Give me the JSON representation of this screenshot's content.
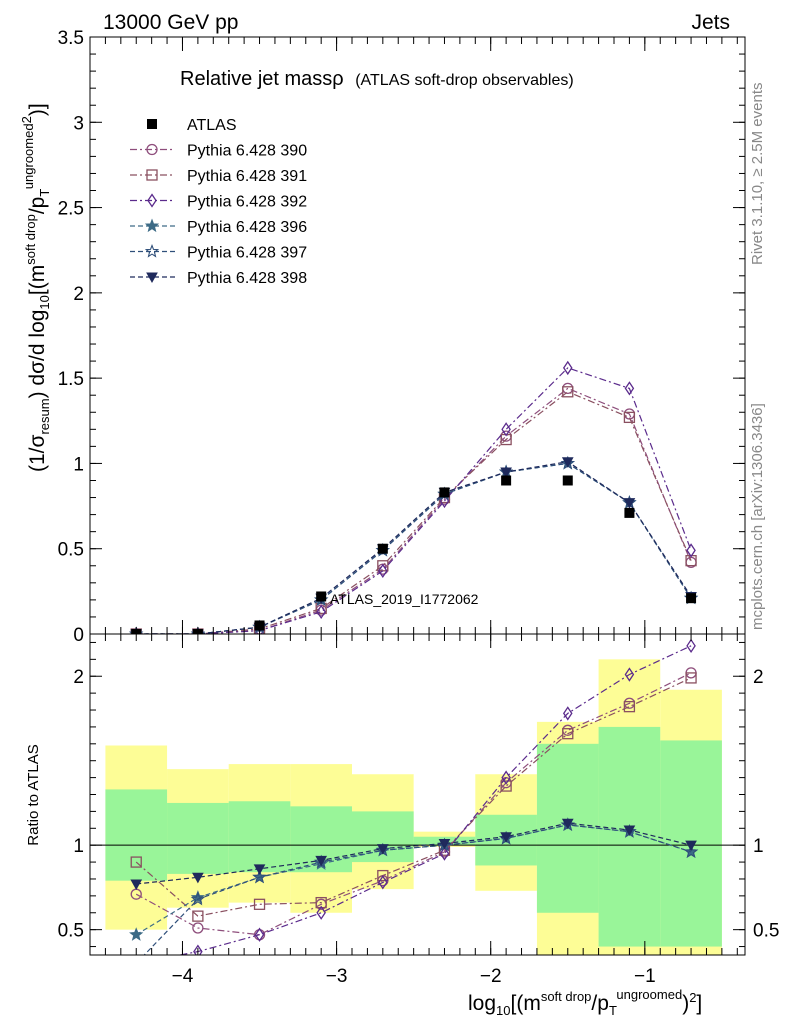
{
  "header": {
    "left": "13000 GeV pp",
    "right": "Jets"
  },
  "side": {
    "rivet": "Rivet 3.1.10, ≥ 2.5M events",
    "mcplots": "mcplots.cern.ch [arXiv:1306.3436]"
  },
  "watermark": "ATLAS_2019_I1772062",
  "chart_data": {
    "type": "line",
    "title": "Relative jet massρ",
    "subtitle": "(ATLAS soft-drop observables)",
    "x_label": {
      "base": "log",
      "sub": "10",
      "open": "[(m",
      "sup1": "soft drop",
      "mid": "/p",
      "sub2": "T",
      "sup2": "ungroomed",
      "sup3": "2",
      "close": ")",
      "close2": "]"
    },
    "y_label_main": {
      "pre": "(1/σ",
      "sub": "resum",
      "mid": ") dσ/d log",
      "sub2": "10",
      "open": "[(m",
      "sup1": "soft drop",
      "mid2": "/p",
      "sub3": "T",
      "sup2": "ungroomed",
      "sup3": "2",
      "close": ")]"
    },
    "y_label_ratio": "Ratio to ATLAS",
    "xlim": [
      -4.6,
      -0.35
    ],
    "ylim_main": [
      0,
      3.5
    ],
    "ylim_ratio": [
      0.35,
      2.25
    ],
    "log_y": false,
    "grid": false,
    "legend_position": "top-left",
    "x_ticks": [
      -4,
      -3,
      -2,
      -1
    ],
    "x_tick_labels": [
      "−4",
      "−3",
      "−2",
      "−1"
    ],
    "y_ticks_main": [
      0,
      0.5,
      1,
      1.5,
      2,
      2.5,
      3,
      3.5
    ],
    "y_tick_labels_main": [
      "0",
      "0.5",
      "1",
      "1.5",
      "2",
      "2.5",
      "3",
      "3.5"
    ],
    "y_ticks_ratio": [
      0.5,
      1,
      2
    ],
    "y_tick_labels_ratio": [
      "0.5",
      "1",
      "2"
    ],
    "x": [
      -4.3,
      -3.9,
      -3.5,
      -3.1,
      -2.7,
      -2.3,
      -1.9,
      -1.5,
      -1.1,
      -0.7
    ],
    "bin_edges": [
      -4.5,
      -4.1,
      -3.7,
      -3.3,
      -2.9,
      -2.5,
      -2.1,
      -1.7,
      -1.3,
      -0.9,
      -0.5
    ],
    "band_yellow": [
      [
        0.5,
        1.59
      ],
      [
        0.63,
        1.45
      ],
      [
        0.66,
        1.48
      ],
      [
        0.6,
        1.48
      ],
      [
        0.74,
        1.42
      ],
      [
        0.99,
        1.08
      ],
      [
        0.73,
        1.42
      ],
      [
        0.3,
        1.73
      ],
      [
        0.3,
        2.1
      ],
      [
        0.3,
        1.92
      ]
    ],
    "band_green": [
      [
        0.79,
        1.33
      ],
      [
        0.83,
        1.25
      ],
      [
        0.84,
        1.26
      ],
      [
        0.84,
        1.23
      ],
      [
        0.9,
        1.2
      ],
      [
        1.0,
        1.05
      ],
      [
        0.88,
        1.18
      ],
      [
        0.6,
        1.6
      ],
      [
        0.4,
        1.7
      ],
      [
        0.4,
        1.62
      ]
    ],
    "data": {
      "name": "ATLAS",
      "color": "#000000",
      "values": [
        0.0,
        0.0,
        0.05,
        0.22,
        0.5,
        0.83,
        0.9,
        0.9,
        0.71,
        0.21
      ]
    },
    "series": [
      {
        "name": "Pythia 6.428 390",
        "marker": "circle",
        "dash": "dashdot",
        "color": "#8e4e7c",
        "values": [
          0.0,
          0.0,
          0.02,
          0.14,
          0.38,
          0.79,
          1.16,
          1.44,
          1.29,
          0.42
        ],
        "ratio": [
          0.71,
          0.51,
          0.47,
          0.65,
          0.79,
          0.96,
          1.37,
          1.68,
          1.84,
          2.02
        ]
      },
      {
        "name": "Pythia 6.428 391",
        "marker": "square",
        "dash": "dashdot",
        "color": "#8a5060",
        "values": [
          0.0,
          0.0,
          0.03,
          0.15,
          0.4,
          0.8,
          1.14,
          1.42,
          1.27,
          0.43
        ],
        "ratio": [
          0.9,
          0.58,
          0.65,
          0.66,
          0.82,
          0.97,
          1.35,
          1.66,
          1.82,
          1.99
        ]
      },
      {
        "name": "Pythia 6.428 392",
        "marker": "diamond",
        "dash": "dashdot",
        "color": "#5b2b8c",
        "values": [
          0.0,
          0.0,
          0.02,
          0.13,
          0.37,
          0.78,
          1.2,
          1.56,
          1.44,
          0.49
        ],
        "ratio": [
          0.3,
          0.37,
          0.47,
          0.6,
          0.78,
          0.95,
          1.4,
          1.78,
          2.01,
          2.18
        ]
      },
      {
        "name": "Pythia 6.428 396",
        "marker": "star",
        "dash": "dashed",
        "color": "#3d6b86",
        "values": [
          0.0,
          0.0,
          0.04,
          0.2,
          0.49,
          0.82,
          0.95,
          1.0,
          0.77,
          0.21
        ],
        "ratio": [
          0.47,
          0.69,
          0.81,
          0.89,
          0.97,
          1.0,
          1.04,
          1.12,
          1.08,
          0.96
        ]
      },
      {
        "name": "Pythia 6.428 397",
        "marker": "star-open",
        "dash": "dashed",
        "color": "#2f4f7a",
        "values": [
          0.0,
          0.0,
          0.04,
          0.2,
          0.49,
          0.82,
          0.95,
          1.0,
          0.77,
          0.21
        ],
        "ratio": [
          0.3,
          0.68,
          0.81,
          0.9,
          0.97,
          1.0,
          1.04,
          1.12,
          1.08,
          0.96
        ]
      },
      {
        "name": "Pythia 6.428 398",
        "marker": "triangle-down",
        "dash": "dashed",
        "color": "#1f2a5c",
        "values": [
          0.0,
          0.0,
          0.04,
          0.21,
          0.5,
          0.83,
          0.95,
          1.01,
          0.77,
          0.22
        ],
        "ratio": [
          0.77,
          0.81,
          0.86,
          0.91,
          0.98,
          1.01,
          1.05,
          1.13,
          1.09,
          1.0
        ]
      }
    ]
  }
}
